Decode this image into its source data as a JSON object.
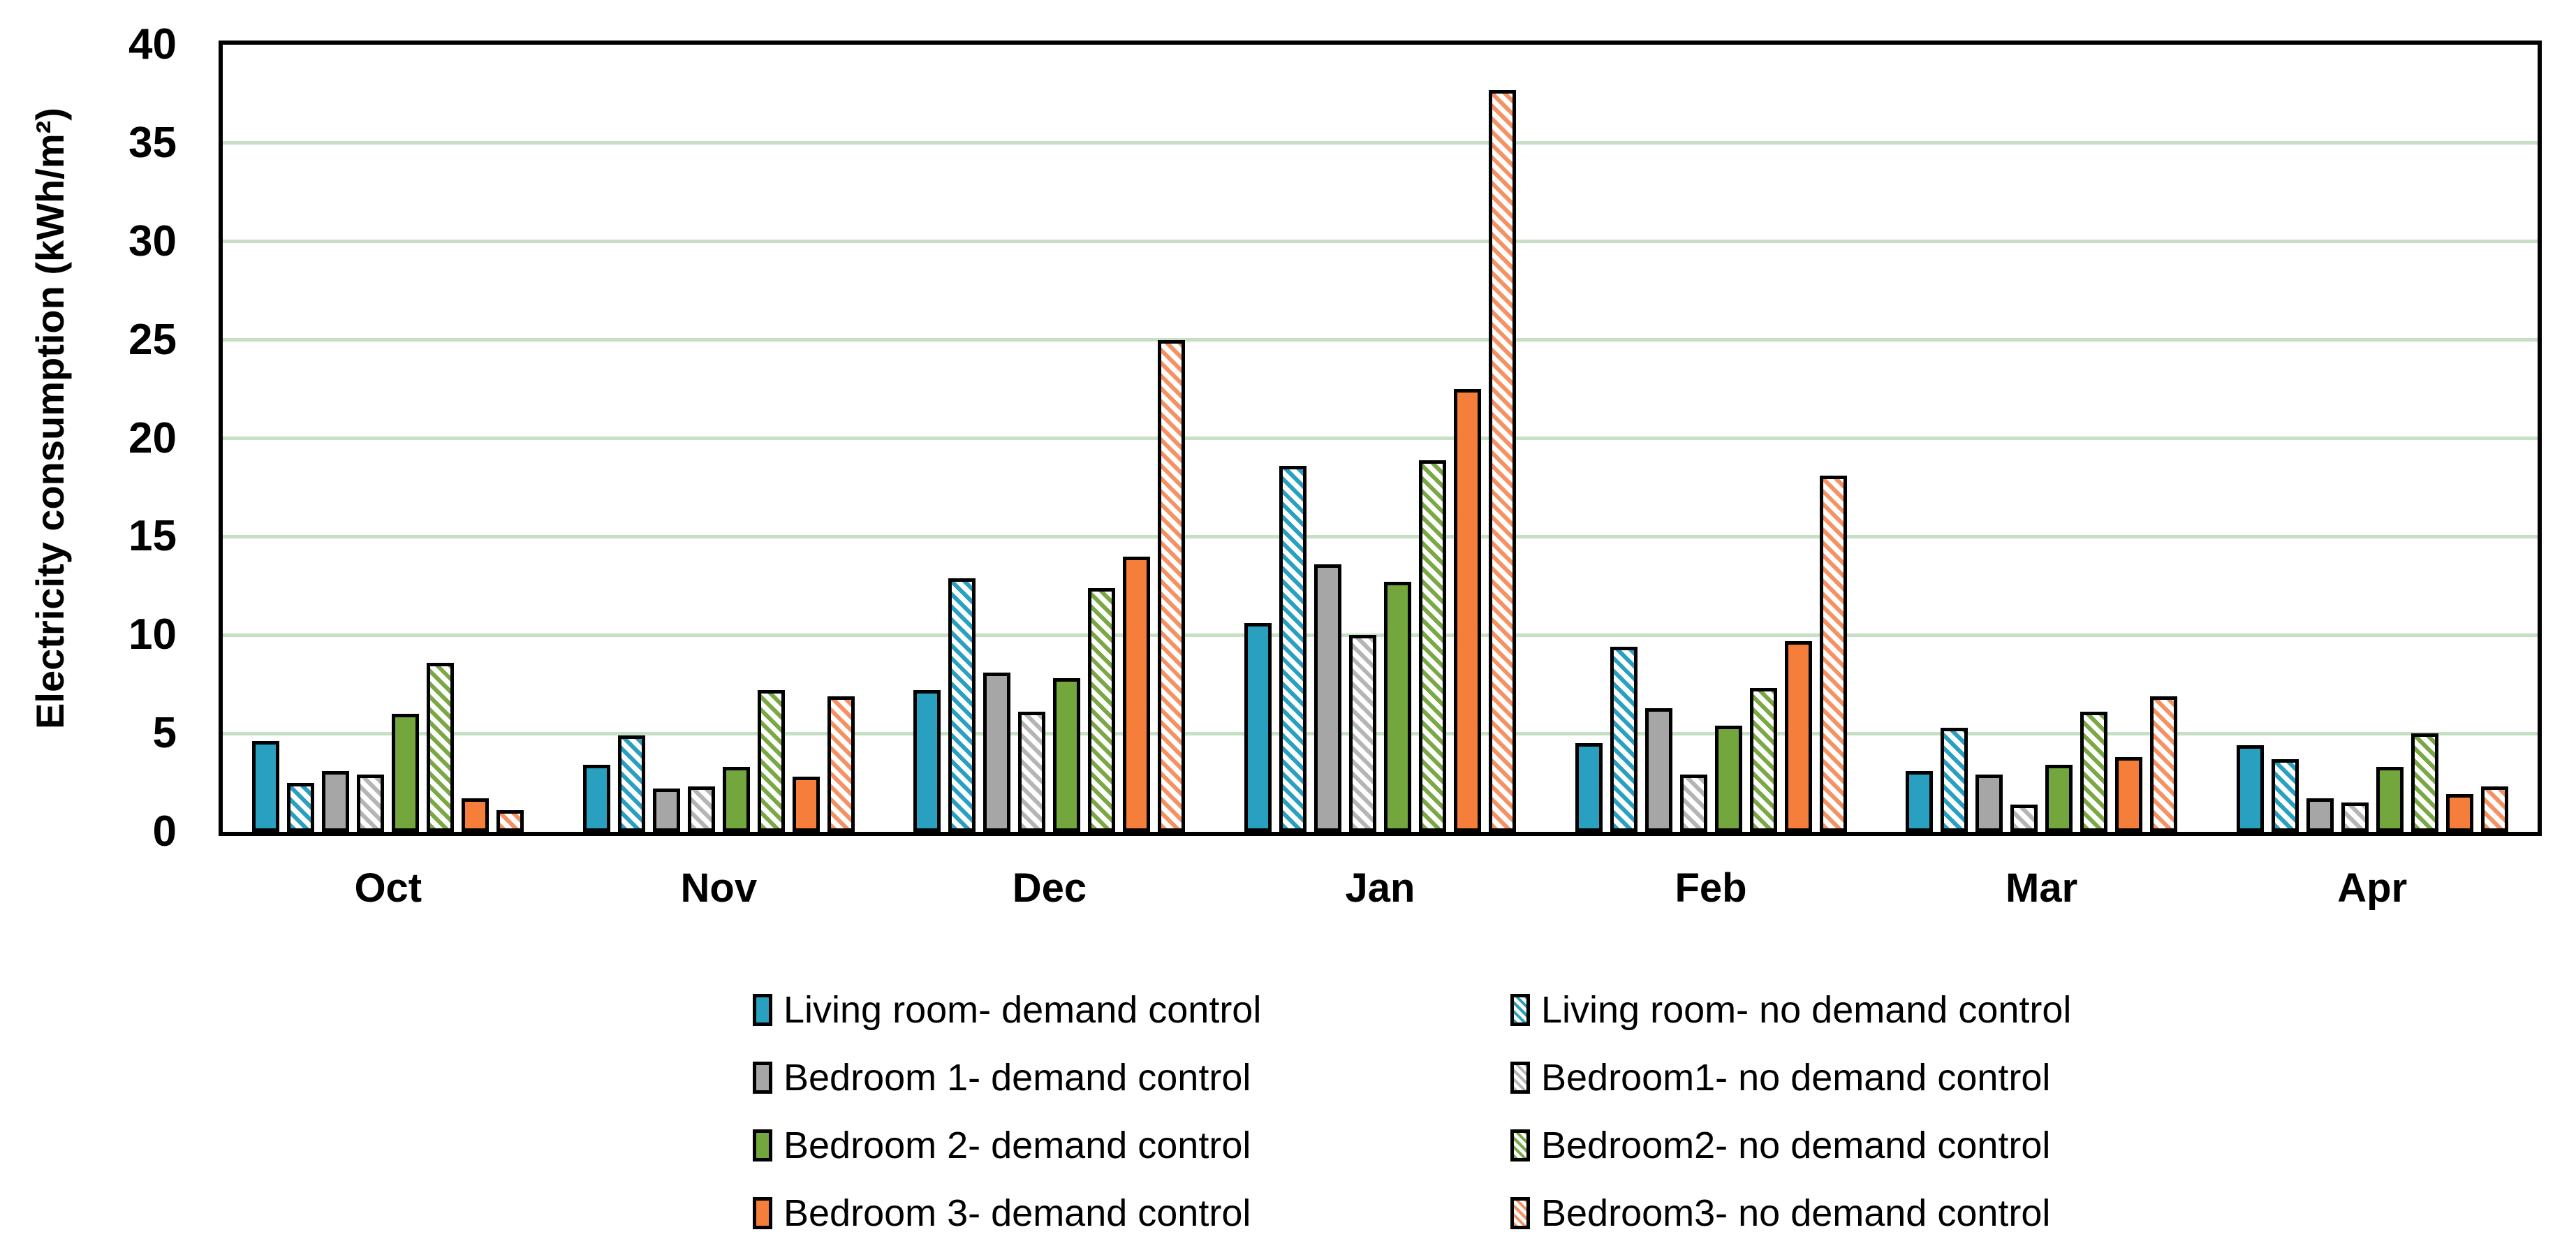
{
  "chart_data": {
    "type": "bar",
    "title": "",
    "xlabel": "",
    "ylabel": "Electricity consumption (kWh/m²)",
    "ylim": [
      0,
      40
    ],
    "yticks": [
      0,
      5,
      10,
      15,
      20,
      25,
      30,
      35,
      40
    ],
    "grid": "horizontal",
    "gridline_color": "#c5e0c3",
    "plot_border_color": "#000000",
    "background_color": "#ffffff",
    "legend_position": "bottom-two-columns",
    "categories": [
      "Oct",
      "Nov",
      "Dec",
      "Jan",
      "Feb",
      "Mar",
      "Apr"
    ],
    "series": [
      {
        "name": "Living room- demand control",
        "color": "#2aa0c0",
        "hatch": false,
        "values": [
          4.6,
          3.4,
          7.2,
          10.6,
          4.5,
          3.1,
          4.4
        ]
      },
      {
        "name": "Living room- no demand control",
        "color": "#2aa0c0",
        "hatch": true,
        "values": [
          2.5,
          4.9,
          12.9,
          18.6,
          9.4,
          5.3,
          3.7
        ]
      },
      {
        "name": "Bedroom 1- demand control",
        "color": "#a6a6a6",
        "hatch": false,
        "values": [
          3.1,
          2.2,
          8.1,
          13.6,
          6.3,
          2.9,
          1.7
        ]
      },
      {
        "name": "Bedroom1- no demand control",
        "color": "#b5b5b5",
        "hatch": true,
        "values": [
          2.9,
          2.3,
          6.1,
          10.0,
          2.9,
          1.4,
          1.5
        ]
      },
      {
        "name": "Bedroom 2- demand control",
        "color": "#73a63d",
        "hatch": false,
        "values": [
          6.0,
          3.3,
          7.8,
          12.7,
          5.4,
          3.4,
          3.3
        ]
      },
      {
        "name": "Bedroom2- no demand control",
        "color": "#79a844",
        "hatch": true,
        "values": [
          8.6,
          7.2,
          12.4,
          18.9,
          7.3,
          6.1,
          5.0
        ]
      },
      {
        "name": "Bedroom 3- demand control",
        "color": "#f57e3b",
        "hatch": false,
        "values": [
          1.7,
          2.8,
          14.0,
          22.5,
          9.7,
          3.8,
          1.9
        ]
      },
      {
        "name": "Bedroom3- no demand control",
        "color": "#f59263",
        "hatch": true,
        "values": [
          1.1,
          6.9,
          25.0,
          37.7,
          18.1,
          6.9,
          2.3
        ]
      }
    ]
  }
}
